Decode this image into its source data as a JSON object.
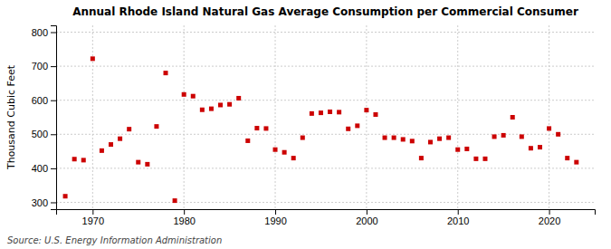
{
  "chart_data": {
    "type": "scatter",
    "title": "Annual Rhode Island Natural Gas Average Consumption per Commercial Consumer",
    "ylabel": "Thousand Cubic Feet",
    "annotations": [
      "Source: U.S. Energy Information Administration"
    ],
    "x": [
      1967,
      1968,
      1969,
      1970,
      1971,
      1972,
      1973,
      1974,
      1975,
      1976,
      1977,
      1978,
      1979,
      1980,
      1981,
      1982,
      1983,
      1984,
      1985,
      1986,
      1987,
      1988,
      1989,
      1990,
      1991,
      1992,
      1993,
      1994,
      1995,
      1996,
      1997,
      1998,
      1999,
      2000,
      2001,
      2002,
      2003,
      2004,
      2005,
      2006,
      2007,
      2008,
      2009,
      2010,
      2011,
      2012,
      2013,
      2014,
      2015,
      2016,
      2017,
      2018,
      2019,
      2020,
      2021,
      2022,
      2023
    ],
    "values": [
      318,
      427,
      424,
      722,
      452,
      470,
      487,
      515,
      418,
      412,
      523,
      680,
      305,
      617,
      612,
      572,
      575,
      586,
      588,
      606,
      481,
      518,
      517,
      455,
      447,
      430,
      490,
      561,
      563,
      566,
      565,
      516,
      525,
      571,
      558,
      490,
      490,
      485,
      480,
      430,
      477,
      487,
      490,
      455,
      457,
      428,
      428,
      493,
      497,
      550,
      493,
      459,
      462,
      517,
      500,
      430,
      418
    ],
    "color": "#cc0000",
    "marker": "square",
    "xlim": [
      1966,
      2025
    ],
    "ylim": [
      280,
      820
    ],
    "xticks": [
      1970,
      1980,
      1990,
      2000,
      2010,
      2020
    ],
    "yticks": [
      300,
      400,
      500,
      600,
      700,
      800
    ],
    "grid": true
  }
}
